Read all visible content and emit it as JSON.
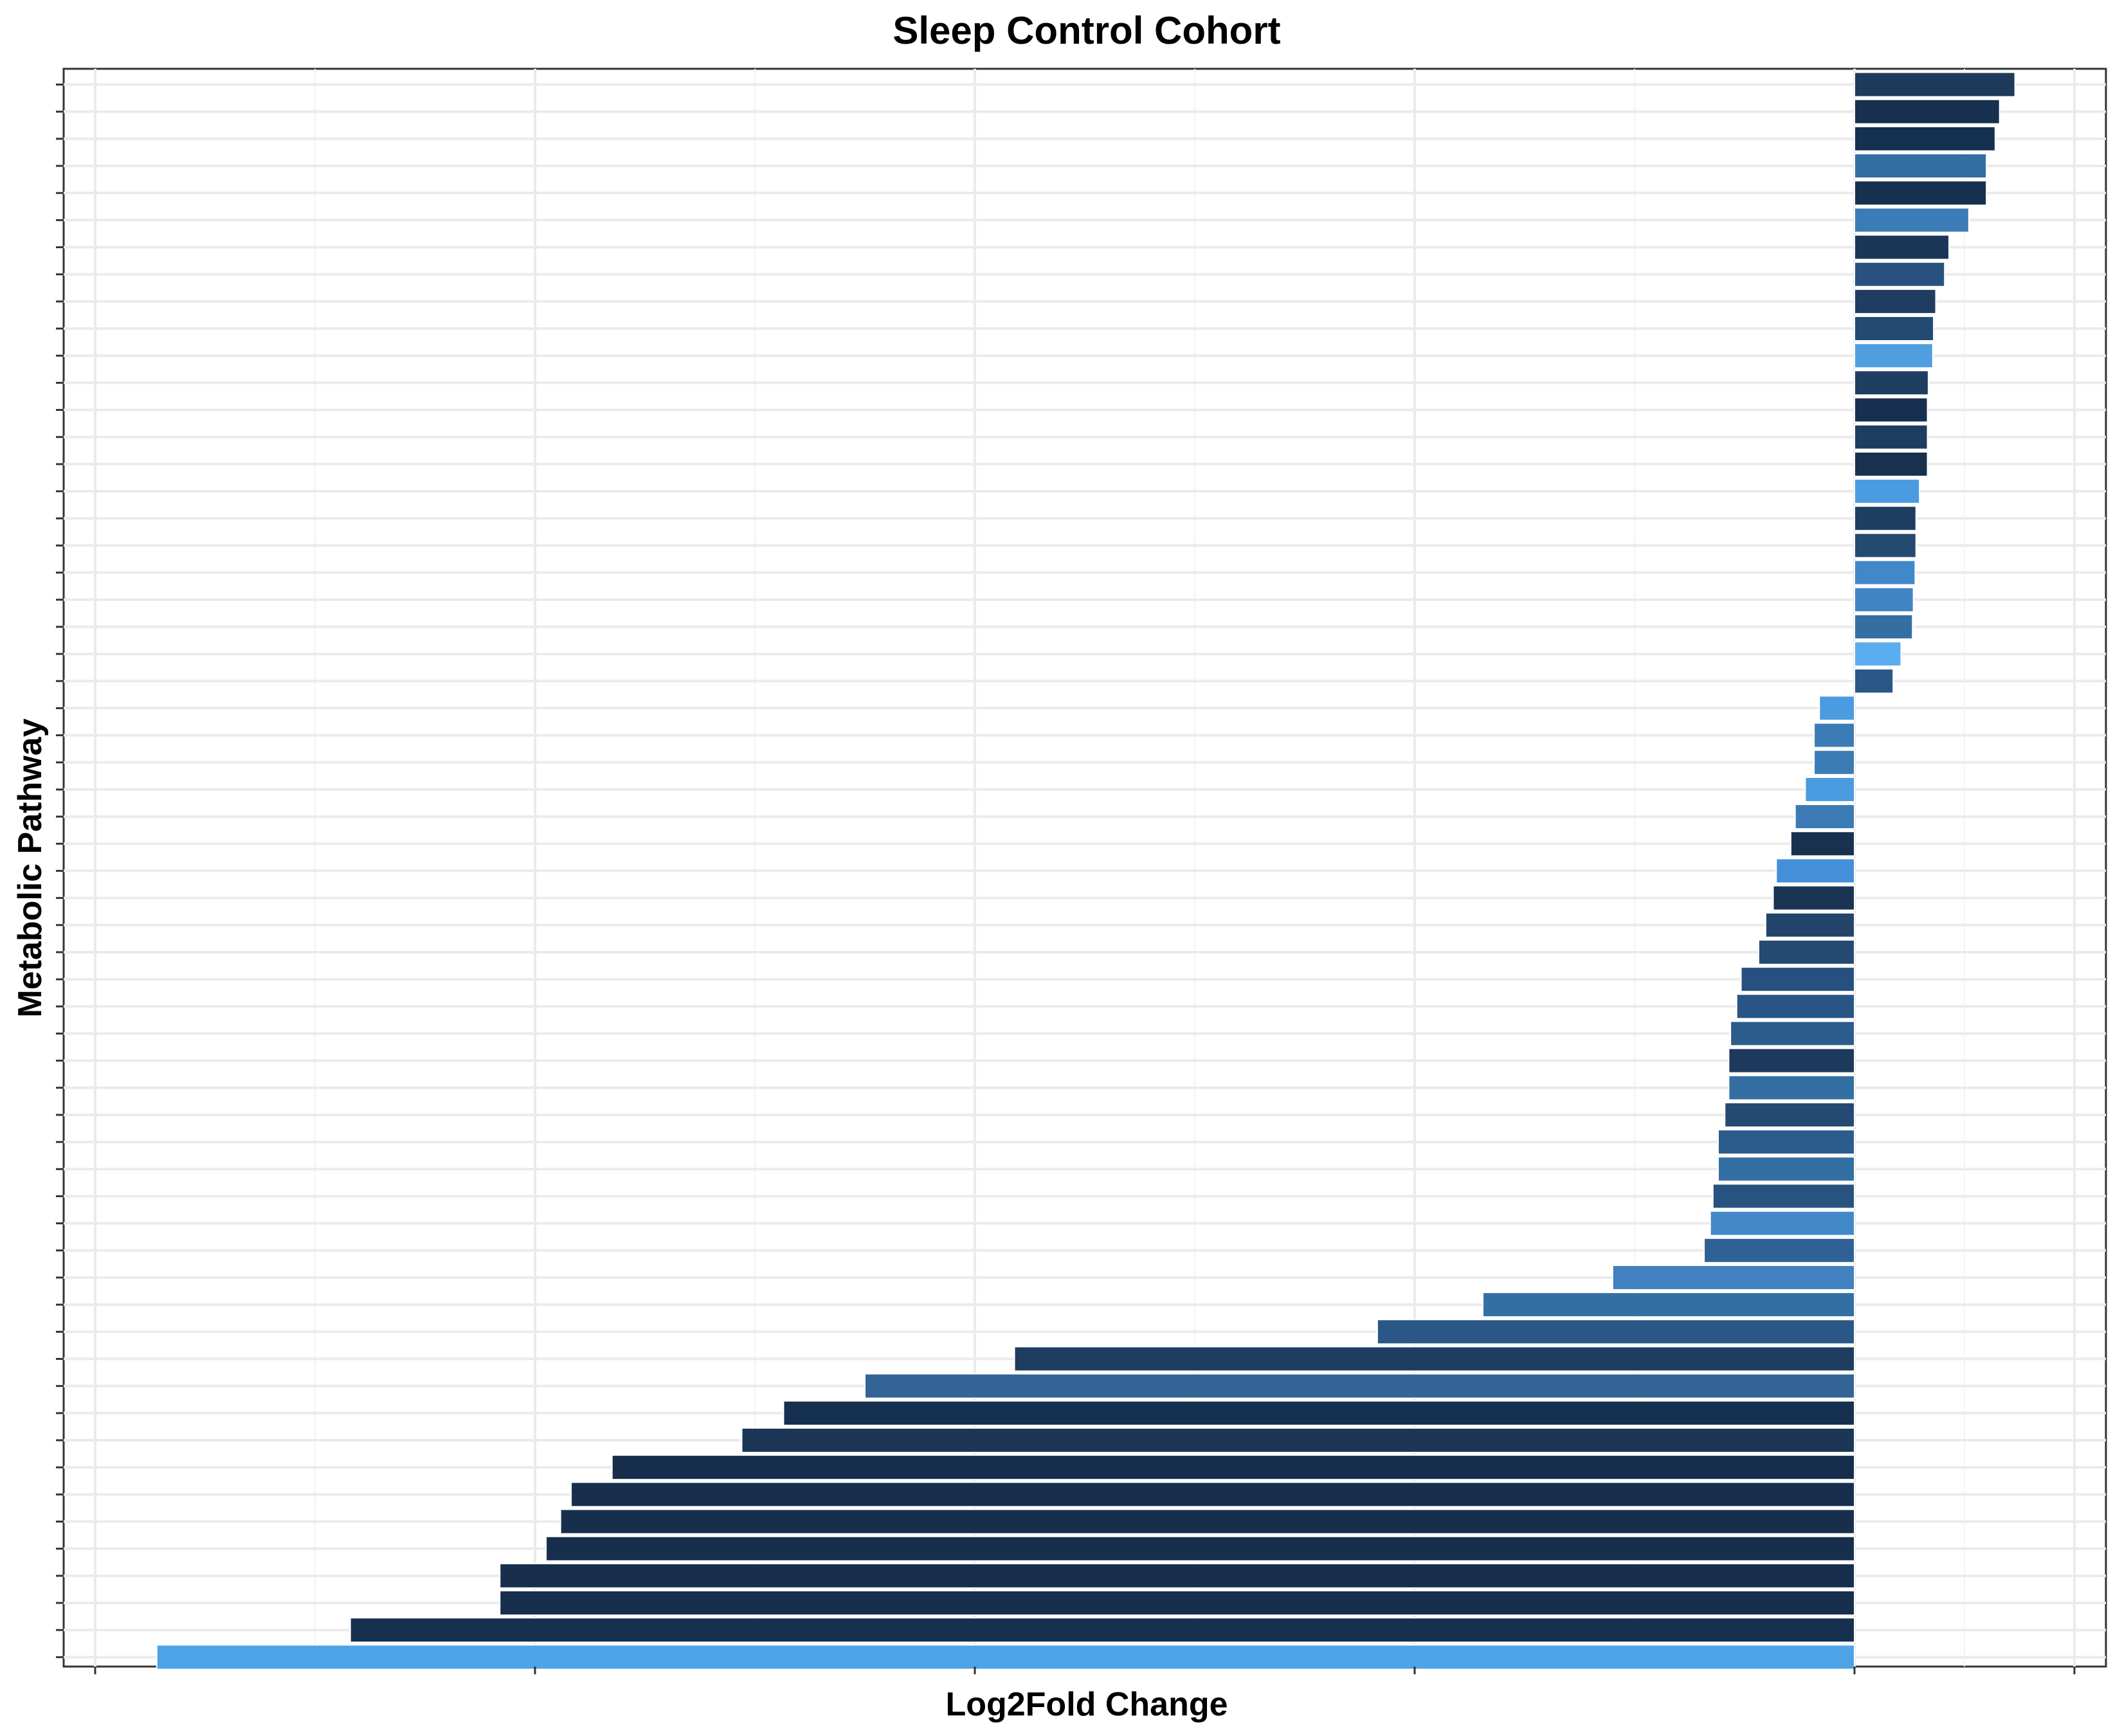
{
  "chart_data": {
    "type": "bar",
    "orientation": "horizontal",
    "title": "Sleep Control Cohort",
    "xlabel": "Log2Fold Change",
    "ylabel": "Metabolic Pathway",
    "grid": true,
    "legend": "none",
    "xlim": [
      -4.0,
      0.55
    ],
    "x_ticks": [
      -4,
      -3,
      -2,
      -1,
      0,
      0.5
    ],
    "values": [
      0.365,
      0.33,
      0.32,
      0.3,
      0.3,
      0.26,
      0.215,
      0.205,
      0.185,
      0.18,
      0.178,
      0.168,
      0.166,
      0.166,
      0.166,
      0.148,
      0.14,
      0.14,
      0.138,
      0.134,
      0.132,
      0.106,
      0.088,
      -0.08,
      -0.092,
      -0.092,
      -0.112,
      -0.135,
      -0.145,
      -0.178,
      -0.185,
      -0.202,
      -0.218,
      -0.258,
      -0.268,
      -0.282,
      -0.286,
      -0.286,
      -0.295,
      -0.31,
      -0.31,
      -0.322,
      -0.328,
      -0.342,
      -0.55,
      -0.845,
      -1.085,
      -1.91,
      -2.25,
      -2.435,
      -2.53,
      -2.825,
      -2.918,
      -2.942,
      -2.975,
      -3.08,
      -3.08,
      -3.42,
      -3.86
    ],
    "bar_colors": [
      "#1e3a5a",
      "#16304f",
      "#16304f",
      "#336fa3",
      "#16304f",
      "#3b7cb6",
      "#1c3657",
      "#285180",
      "#1f3d60",
      "#244a73",
      "#4f9fe0",
      "#1e3e62",
      "#18304f",
      "#1e3d61",
      "#18314f",
      "#4a9be0",
      "#1e3d61",
      "#244a72",
      "#4188c8",
      "#4084c4",
      "#336fa3",
      "#5aaef0",
      "#2a5786",
      "#4a9be0",
      "#3b7cb6",
      "#3b7cb6",
      "#4a9be0",
      "#3c7ab6",
      "#18314f",
      "#4390d8",
      "#1a3454",
      "#224469",
      "#244a72",
      "#26507f",
      "#285584",
      "#2c5c8c",
      "#1d3a5d",
      "#336fa3",
      "#244a73",
      "#2c5c8c",
      "#336fa3",
      "#28527f",
      "#4389ca",
      "#2f6194",
      "#4181bf",
      "#336fa3",
      "#2a5786",
      "#1e3d61",
      "#336496",
      "#16304f",
      "#1c3657",
      "#162e4c",
      "#172f4d",
      "#172f4d",
      "#172f4d",
      "#172f4d",
      "#172f4d",
      "#16304f",
      "#4da3e6"
    ]
  }
}
